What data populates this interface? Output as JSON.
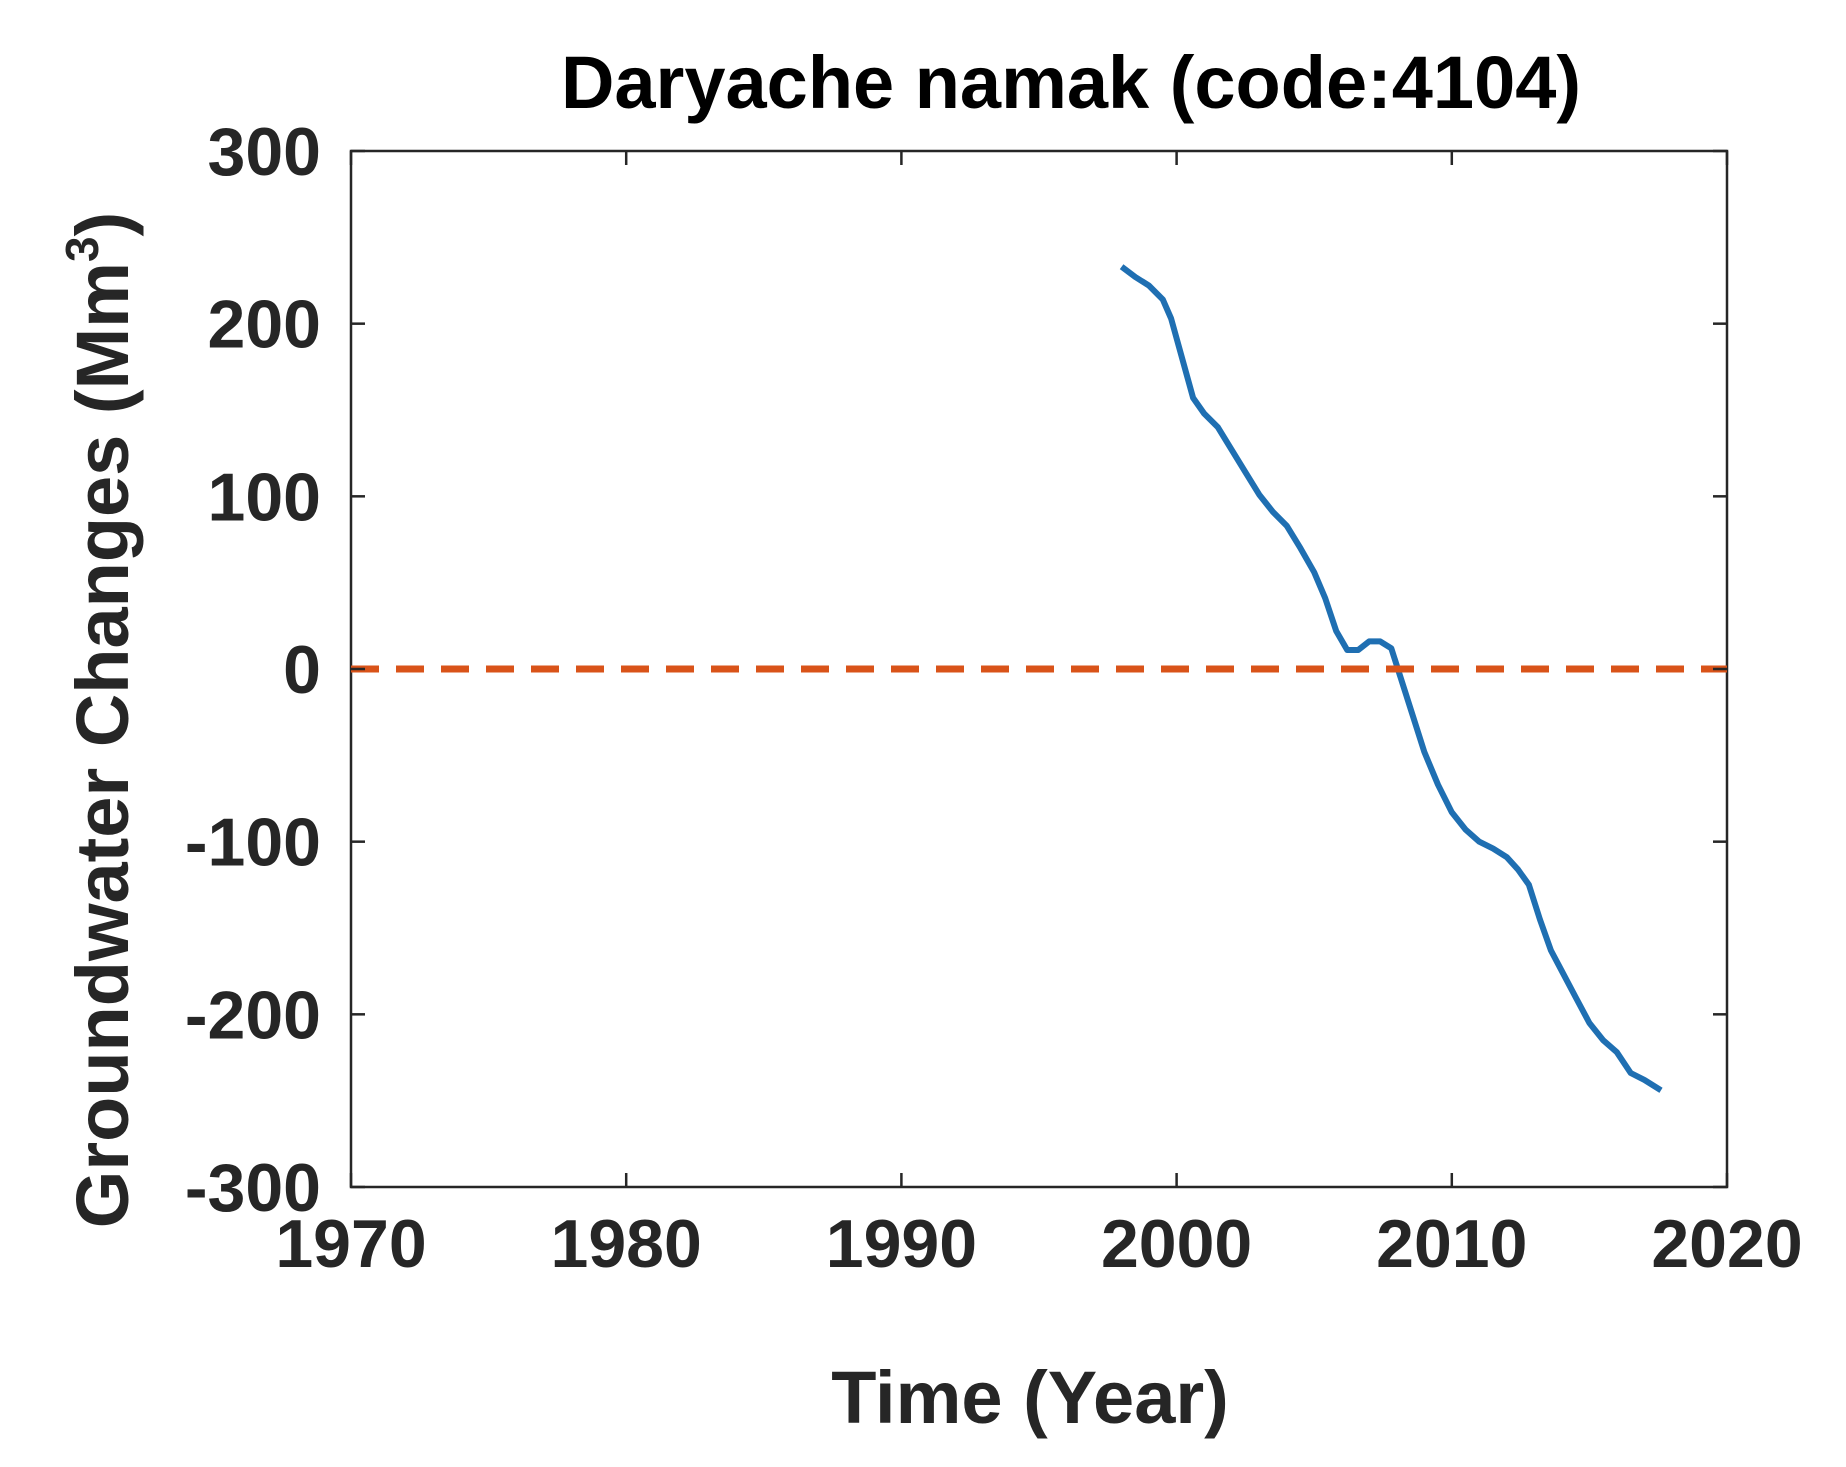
{
  "chart_data": {
    "type": "line",
    "title": "Daryache namak (code:4104)",
    "xlabel": "Time (Year)",
    "ylabel": "Groundwater Changes (Mm",
    "ylabel_superscript": "3",
    "ylabel_close": ")",
    "xlim": [
      1970,
      2020
    ],
    "ylim": [
      -300,
      300
    ],
    "xticks": [
      1970,
      1980,
      1990,
      2000,
      2010,
      2020
    ],
    "yticks": [
      -300,
      -200,
      -100,
      0,
      100,
      200,
      300
    ],
    "grid": false,
    "series": [
      {
        "color": "#1f6fb2",
        "style": "solid",
        "x": [
          1998.0,
          1998.5,
          1999.0,
          1999.5,
          1999.8,
          2000.2,
          2000.6,
          2001.0,
          2001.5,
          2002.0,
          2002.5,
          2003.0,
          2003.5,
          2004.0,
          2004.5,
          2005.0,
          2005.4,
          2005.8,
          2006.2,
          2006.6,
          2007.0,
          2007.4,
          2007.8,
          2008.2,
          2008.6,
          2009.0,
          2009.5,
          2010.0,
          2010.5,
          2011.0,
          2011.5,
          2012.0,
          2012.4,
          2012.8,
          2013.2,
          2013.6,
          2014.0,
          2014.5,
          2015.0,
          2015.5,
          2016.0,
          2016.5,
          2017.0,
          2017.6
        ],
        "y": [
          233,
          227,
          222,
          214,
          203,
          180,
          157,
          148,
          140,
          127,
          114,
          101,
          91,
          83,
          70,
          56,
          41,
          22,
          11,
          11,
          16,
          16,
          12,
          -8,
          -28,
          -48,
          -67,
          -83,
          -93,
          -100,
          -104,
          -109,
          -116,
          -125,
          -145,
          -163,
          -175,
          -190,
          -205,
          -215,
          -222,
          -234,
          -238,
          -244
        ]
      },
      {
        "color": "#d95319",
        "style": "dashed",
        "x": [
          1970,
          2020
        ],
        "y": [
          0,
          0
        ]
      }
    ]
  }
}
